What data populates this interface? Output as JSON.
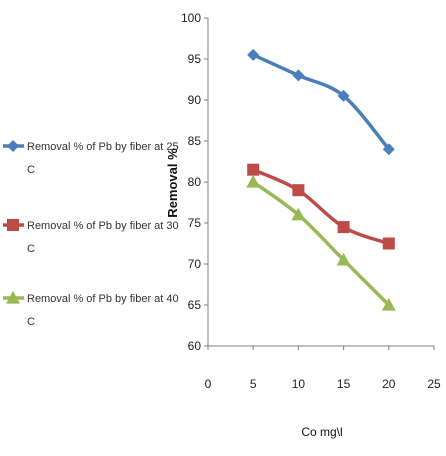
{
  "chart_data": {
    "type": "line",
    "title": "",
    "xlabel": "Co mg\\l",
    "ylabel": "Removal %",
    "xlim": [
      0,
      25
    ],
    "ylim": [
      60,
      100
    ],
    "xticks": [
      0,
      5,
      10,
      15,
      20,
      25
    ],
    "yticks": [
      60,
      65,
      70,
      75,
      80,
      85,
      90,
      95,
      100
    ],
    "grid": "none",
    "legend_position": "left",
    "x": [
      5,
      10,
      15,
      20
    ],
    "series": [
      {
        "name": "Removal % of Pb by fiber at 25 C",
        "legend_lines": [
          "Removal % of Pb by fiber at 25",
          "C"
        ],
        "values": [
          95.5,
          93,
          90.5,
          84
        ],
        "color": "#4a7ebb",
        "marker": "diamond"
      },
      {
        "name": "Removal % of Pb by fiber at 30 C",
        "legend_lines": [
          "Removal % of Pb by fiber at 30",
          "C"
        ],
        "values": [
          81.5,
          79,
          74.5,
          72.5
        ],
        "color": "#be4b48",
        "marker": "square"
      },
      {
        "name": "Removal  % of Pb by fiber at 40 C",
        "legend_lines": [
          "Removal  % of Pb by fiber at 40",
          "C"
        ],
        "values": [
          80,
          76,
          70.5,
          65
        ],
        "color": "#98b954",
        "marker": "triangle"
      }
    ]
  }
}
